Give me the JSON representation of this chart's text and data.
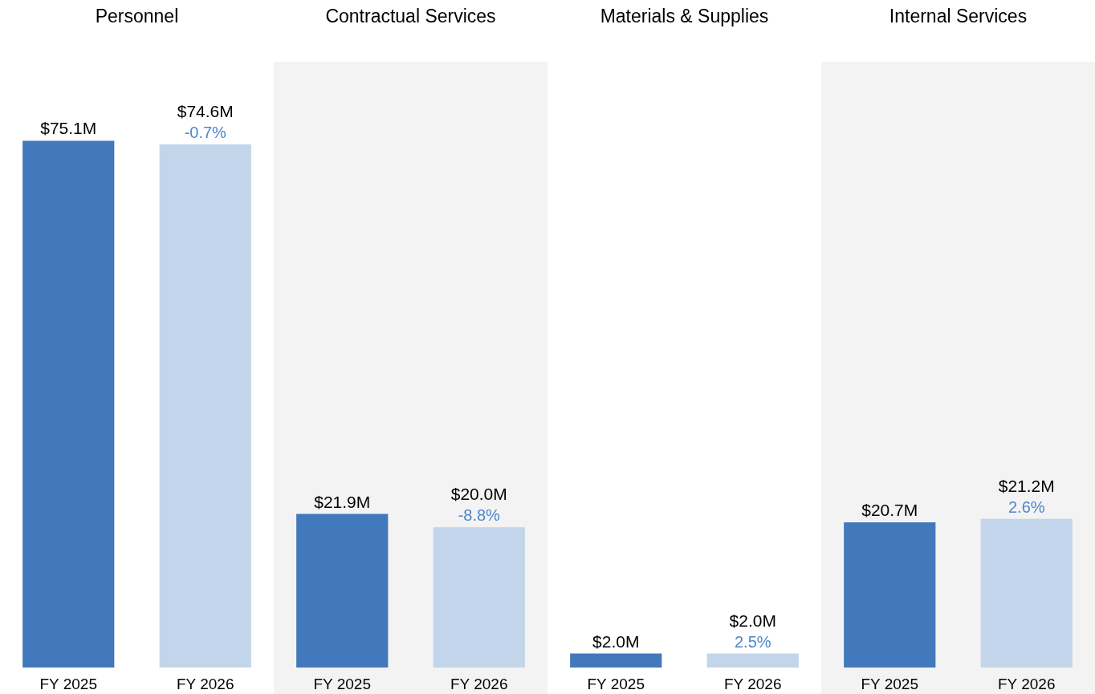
{
  "chart_data": [
    {
      "type": "bar",
      "title": "Personnel",
      "categories": [
        "FY 2025",
        "FY 2026"
      ],
      "values": [
        75.1,
        74.6
      ],
      "colors": [
        "#4279bd",
        "#c3d5ea"
      ],
      "value_labels": [
        "$75.1M",
        "$74.6M"
      ],
      "annotations": [
        {
          "text": "-0.7%",
          "x": "FY 2026",
          "y": 74.6
        }
      ]
    },
    {
      "type": "bar",
      "title": "Contractual Services",
      "categories": [
        "FY 2025",
        "FY 2026"
      ],
      "values": [
        21.9,
        20.0
      ],
      "colors": [
        "#4279bd",
        "#c3d5ea"
      ],
      "value_labels": [
        "$21.9M",
        "$20.0M"
      ],
      "annotations": [
        {
          "text": "-8.8%",
          "x": "FY 2026",
          "y": 20.0
        }
      ]
    },
    {
      "type": "bar",
      "title": "Materials & Supplies",
      "categories": [
        "FY 2025",
        "FY 2026"
      ],
      "values": [
        2.0,
        2.0
      ],
      "colors": [
        "#4279bd",
        "#c3d5ea"
      ],
      "value_labels": [
        "$2.0M",
        "$2.0M"
      ],
      "annotations": [
        {
          "text": "2.5%",
          "x": "FY 2026",
          "y": 2.0
        }
      ]
    },
    {
      "type": "bar",
      "title": "Internal Services",
      "categories": [
        "FY 2025",
        "FY 2026"
      ],
      "values": [
        20.7,
        21.2
      ],
      "colors": [
        "#4279bd",
        "#c3d5ea"
      ],
      "value_labels": [
        "$20.7M",
        "$21.2M"
      ],
      "annotations": [
        {
          "text": "2.6%",
          "x": "FY 2026",
          "y": 21.2
        }
      ]
    }
  ]
}
